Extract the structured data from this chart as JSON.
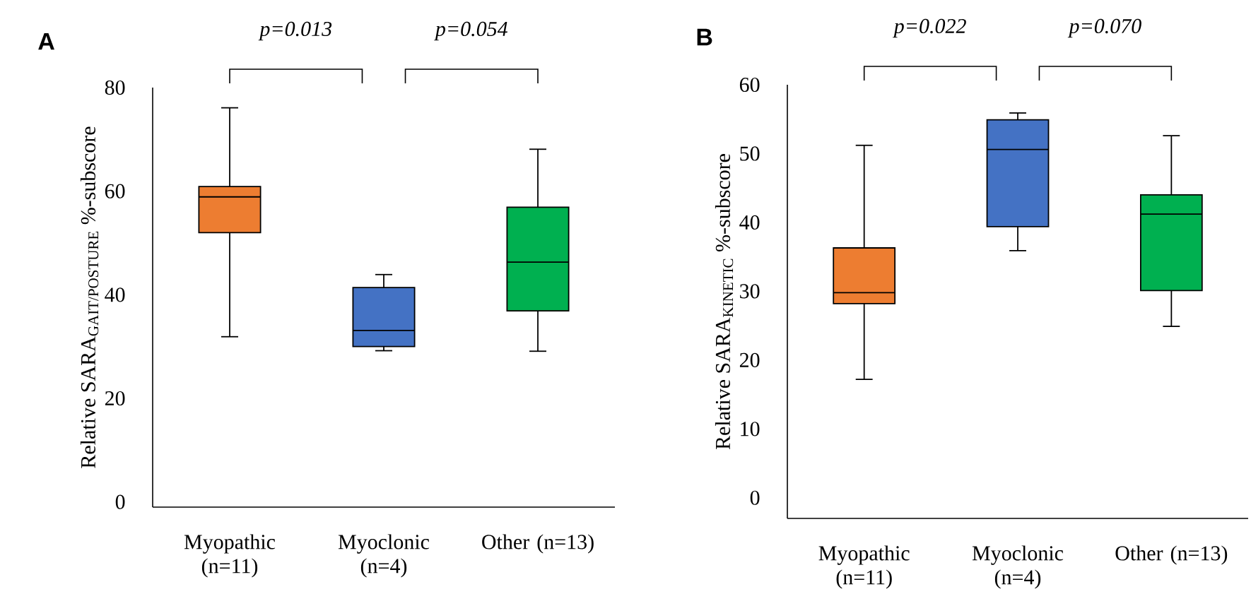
{
  "chart_data": [
    {
      "type": "box",
      "title": "A",
      "ylabel": "\\text{Relative SARA}_{\\text{GAIT/POSTURE}}\\text{ \\%-subscore}",
      "categories": [
        "Myopathic (n=11)",
        "Myoclonic (n=4)",
        "Other (n=13)"
      ],
      "boxes": [
        {
          "low": 31.9,
          "q1": 52.0,
          "median": 58.9,
          "q3": 60.9,
          "high": 76.1
        },
        {
          "low": 29.2,
          "q1": 30.0,
          "median": 33.1,
          "q3": 41.4,
          "high": 43.9
        },
        {
          "low": 29.1,
          "q1": 36.9,
          "median": 46.3,
          "q3": 56.9,
          "high": 68.1
        }
      ],
      "colors": [
        "#ed7d31",
        "#4472c4",
        "#00b050"
      ],
      "ylim": [
        -1,
        80
      ],
      "yticks": [
        0,
        20,
        40,
        60,
        80
      ],
      "annotations": [
        "*p=0.013*",
        "*p=0.054*"
      ]
    },
    {
      "type": "box",
      "title": "B",
      "ylabel": "\\text{Relative SARA}_{\\text{KINETIC}}\\text{ \\%-subscore}",
      "categories": [
        "Myopathic (n=11)",
        "Myoclonic (n=4)",
        "Other (n=13)"
      ],
      "boxes": [
        {
          "low": 17.2,
          "q1": 28.2,
          "median": 29.8,
          "q3": 36.3,
          "high": 51.2
        },
        {
          "low": 35.9,
          "q1": 39.4,
          "median": 50.6,
          "q3": 54.9,
          "high": 55.9
        },
        {
          "low": 24.9,
          "q1": 30.1,
          "median": 41.2,
          "q3": 44.0,
          "high": 52.6
        }
      ],
      "colors": [
        "#ed7d31",
        "#4472c4",
        "#00b050"
      ],
      "ylim": [
        -3,
        60
      ],
      "yticks": [
        0,
        10,
        20,
        30,
        40,
        50,
        60
      ],
      "annotations": [
        "*p=0.022*",
        "*p=0.070*"
      ]
    }
  ]
}
